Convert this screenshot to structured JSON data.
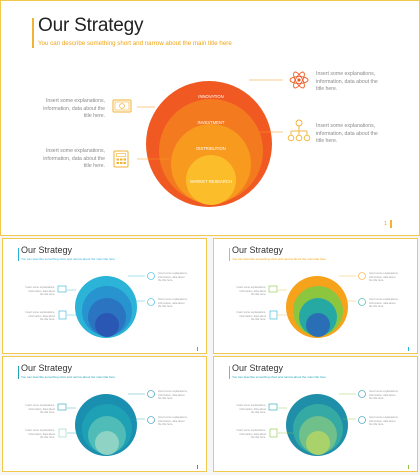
{
  "main": {
    "title": "Our Strategy",
    "subtitle": "You can describe something short and narrow about the main title here",
    "page_number": "1",
    "layers": [
      "INNOVATION",
      "INVESTMENT",
      "DISTRIBUTION",
      "MARKET RESEARCH"
    ],
    "left_items": [
      {
        "text": "Insert some explanations, information, data about the title here.",
        "icon": "money-icon"
      },
      {
        "text": "Insert some explanations, information, data about the title here.",
        "icon": "calculator-icon"
      }
    ],
    "right_items": [
      {
        "text": "Insert some explanations, information, data about the title here.",
        "icon": "atom-icon"
      },
      {
        "text": "Insert some explanations, information, data about the title here.",
        "icon": "hierarchy-icon"
      }
    ]
  },
  "thumbnails": [
    {
      "title": "Our Strategy",
      "subtitle": "You can describe something short and narrow about the main title here",
      "theme": "blue"
    },
    {
      "title": "Our Strategy",
      "subtitle": "You can describe something short and narrow about the main title here",
      "theme": "orange-blue"
    },
    {
      "title": "Our Strategy",
      "subtitle": "You can describe something short and narrow about the main title here",
      "theme": "teal"
    },
    {
      "title": "Our Strategy",
      "subtitle": "You can describe something short and narrow about the main title here",
      "theme": "green-teal"
    }
  ],
  "colors": {
    "accent": "#f2b233",
    "orange": [
      "#f05a22",
      "#f47a20",
      "#f79a1e",
      "#fbbd2a"
    ]
  }
}
